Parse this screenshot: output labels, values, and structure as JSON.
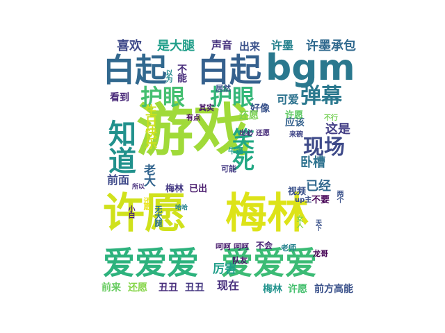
{
  "words": [
    {
      "text": "游戏",
      "color": "#a0da39"
    },
    {
      "text": "许愿",
      "color": "#d0e11c"
    },
    {
      "text": "梅林",
      "color": "#dde318"
    },
    {
      "text": "爱爱爱",
      "color": "#2db27d"
    },
    {
      "text": "爱爱爱",
      "color": "#3bbb75"
    },
    {
      "text": "bgm",
      "color": "#2a788e"
    },
    {
      "text": "白起",
      "color": "#31688e"
    },
    {
      "text": "白起",
      "color": "#35608d"
    },
    {
      "text": "知道",
      "color": "#21918c"
    },
    {
      "text": "护眼",
      "color": "#44bf70"
    },
    {
      "text": "护眼",
      "color": "#35b779"
    },
    {
      "text": "弹幕",
      "color": "#2a788e"
    },
    {
      "text": "笑死",
      "color": "#22a884"
    },
    {
      "text": "现场",
      "color": "#3e4a89"
    },
    {
      "text": "喜欢",
      "color": "#3e4989"
    },
    {
      "text": "是大腿",
      "color": "#1f9e89"
    },
    {
      "text": "声音",
      "color": "#46327e"
    },
    {
      "text": "出来",
      "color": "#3b528b"
    },
    {
      "text": "许墨",
      "color": "#26828e"
    },
    {
      "text": "许墨承包",
      "color": "#30698e"
    },
    {
      "text": "不能",
      "color": "#472d7b"
    },
    {
      "text": "可爱",
      "color": "#2c728e"
    },
    {
      "text": "好像",
      "color": "#3a538b"
    },
    {
      "text": "看到",
      "color": "#482878"
    },
    {
      "text": "应该",
      "color": "#34618d"
    },
    {
      "text": "这是",
      "color": "#433e85"
    },
    {
      "text": "还愿",
      "color": "#7ad151"
    },
    {
      "text": "许愿",
      "color": "#5ec962"
    },
    {
      "text": "前面",
      "color": "#3e4989"
    },
    {
      "text": "生日快乐",
      "color": "#cde11d"
    },
    {
      "text": "老大",
      "color": "#32648e"
    },
    {
      "text": "卧槽",
      "color": "#2c718e"
    },
    {
      "text": "已经",
      "color": "#31688e"
    },
    {
      "text": "梅林",
      "color": "#443983"
    },
    {
      "text": "已出",
      "color": "#481a6c"
    },
    {
      "text": "视频",
      "color": "#3b528b"
    },
    {
      "text": "不要",
      "color": "#440154"
    },
    {
      "text": "厉害",
      "color": "#1f9e89"
    },
    {
      "text": "现在",
      "color": "#472f7d"
    },
    {
      "text": "前来",
      "color": "#65cb5e"
    },
    {
      "text": "还愿",
      "color": "#86d549"
    },
    {
      "text": "丑丑",
      "color": "#472d7b"
    },
    {
      "text": "丑丑",
      "color": "#453781"
    },
    {
      "text": "梅林",
      "color": "#20928c"
    },
    {
      "text": "许愿",
      "color": "#46c06f"
    },
    {
      "text": "前方高能",
      "color": "#3b528b"
    },
    {
      "text": "不会",
      "color": "#482475"
    },
    {
      "text": "呵呵",
      "color": "#481b6d"
    },
    {
      "text": "呵呵",
      "color": "#482071"
    },
    {
      "text": "队友",
      "color": "#481467"
    },
    {
      "text": "老师",
      "color": "#26828e"
    },
    {
      "text": "龙哥",
      "color": "#440154"
    },
    {
      "text": "可能",
      "color": "#443a83"
    },
    {
      "text": "其实",
      "color": "#481769"
    },
    {
      "text": "居然",
      "color": "#3b528b"
    },
    {
      "text": "有点",
      "color": "#46075a"
    },
    {
      "text": "牛逼",
      "color": "#1e9b8a"
    },
    {
      "text": "出必",
      "color": "#472a7a"
    },
    {
      "text": "还愿",
      "color": "#472c7a"
    },
    {
      "text": "以为",
      "color": "#238a8d"
    },
    {
      "text": "不行",
      "color": "#75d054"
    },
    {
      "text": "来碗",
      "color": "#404688"
    },
    {
      "text": "up主",
      "color": "#3c4f8a"
    },
    {
      "text": "两个",
      "color": "#3b528b"
    },
    {
      "text": "还愿",
      "color": "#eae51a"
    },
    {
      "text": "小白",
      "color": "#482173"
    },
    {
      "text": "无大腿",
      "color": "#2c738e"
    },
    {
      "text": "女人",
      "color": "#8bd646"
    },
    {
      "text": "所以",
      "color": "#472f7d"
    },
    {
      "text": "哈哈",
      "color": "#26828e"
    },
    {
      "text": "天下",
      "color": "#3b528b"
    }
  ]
}
